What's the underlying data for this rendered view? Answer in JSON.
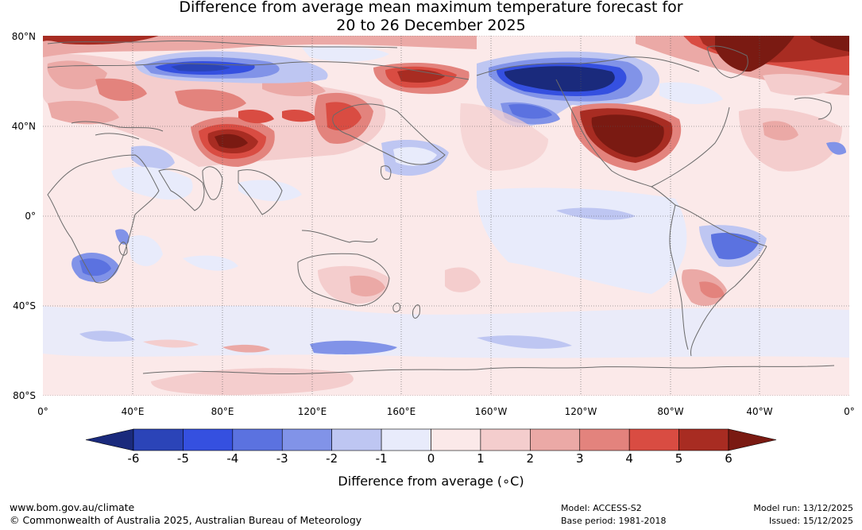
{
  "title": {
    "line1": "Difference from average mean maximum temperature forecast for",
    "line2": "20 to 26 December 2025"
  },
  "map": {
    "lat_labels": [
      "80°N",
      "40°N",
      "0°",
      "40°S",
      "80°S"
    ],
    "lon_labels": [
      "0°",
      "40°E",
      "80°E",
      "120°E",
      "160°E",
      "160°W",
      "120°W",
      "80°W",
      "40°W",
      "0°"
    ],
    "gridlines": "dotted"
  },
  "colorbar": {
    "title": "Difference from average (∘C)",
    "tick_labels": [
      "-6",
      "-5",
      "-4",
      "-3",
      "-2",
      "-1",
      "0",
      "1",
      "2",
      "3",
      "4",
      "5",
      "6"
    ],
    "colors": [
      "#1a2a7c",
      "#2b44b8",
      "#3550e0",
      "#5b72e0",
      "#8193e8",
      "#bec6f2",
      "#e8ebfb",
      "#fbe9e9",
      "#f4cdcd",
      "#eba9a6",
      "#e3837d",
      "#d94c42",
      "#a82c22",
      "#7a1a12"
    ],
    "extend": "both"
  },
  "footer": {
    "website": "www.bom.gov.au/climate",
    "copyright": "© Commonwealth of Australia 2025, Australian Bureau of Meteorology",
    "model": "Model: ACCESS-S2",
    "base_period": "Base period: 1981-2018",
    "model_run": "Model run: 13/12/2025",
    "issued": "Issued: 15/12/2025"
  }
}
